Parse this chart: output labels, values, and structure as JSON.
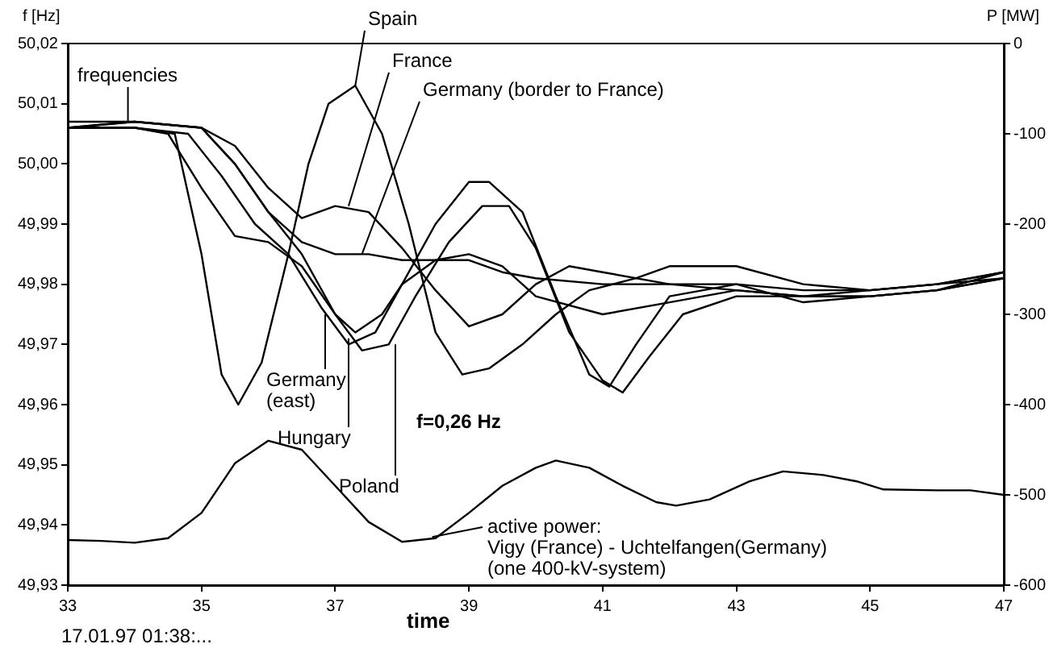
{
  "chart_data": {
    "type": "line",
    "xlabel": "time",
    "ylabel": "f [Hz]",
    "y2label": "P [MW]",
    "xlim": [
      33,
      47
    ],
    "xticks": [
      33,
      35,
      37,
      39,
      41,
      43,
      45,
      47
    ],
    "ylim": [
      49.93,
      50.02
    ],
    "yticks": [
      {
        "value": 49.93,
        "label": "49,93"
      },
      {
        "value": 49.94,
        "label": "49,94"
      },
      {
        "value": 49.95,
        "label": "49,95"
      },
      {
        "value": 49.96,
        "label": "49,96"
      },
      {
        "value": 49.97,
        "label": "49,97"
      },
      {
        "value": 49.98,
        "label": "49,98"
      },
      {
        "value": 49.99,
        "label": "49,99"
      },
      {
        "value": 50.0,
        "label": "50,00"
      },
      {
        "value": 50.01,
        "label": "50,01"
      },
      {
        "value": 50.02,
        "label": "50,02"
      }
    ],
    "y2lim": [
      -600,
      0
    ],
    "y2ticks": [
      -600,
      -500,
      -400,
      -300,
      -200,
      -100,
      0
    ],
    "grid": false,
    "legend": false,
    "series": [
      {
        "color": "#000000",
        "x": [
          33,
          34,
          34.6,
          35,
          35.3,
          35.55,
          35.9,
          36.3,
          36.6,
          36.9,
          37.3,
          37.7,
          38.1,
          38.5,
          38.9,
          39.3,
          39.8,
          40.3,
          40.8,
          41.5,
          42,
          43,
          44,
          45,
          46,
          47
        ],
        "values": [
          50.006,
          50.006,
          50.005,
          49.985,
          49.965,
          49.96,
          49.967,
          49.985,
          50.0,
          50.01,
          50.013,
          50.005,
          49.99,
          49.972,
          49.965,
          49.966,
          49.97,
          49.975,
          49.979,
          49.981,
          49.983,
          49.983,
          49.98,
          49.979,
          49.98,
          49.982
        ]
      },
      {
        "color": "#000000",
        "x": [
          33,
          34,
          35,
          35.5,
          36,
          36.5,
          37,
          37.5,
          38,
          38.5,
          39,
          39.5,
          40,
          40.5,
          41,
          42,
          43,
          44,
          45,
          46,
          47
        ],
        "values": [
          50.007,
          50.007,
          50.006,
          50.003,
          49.996,
          49.991,
          49.993,
          49.992,
          49.986,
          49.979,
          49.973,
          49.975,
          49.98,
          49.983,
          49.982,
          49.98,
          49.979,
          49.978,
          49.978,
          49.979,
          49.982
        ]
      },
      {
        "color": "#000000",
        "x": [
          33,
          34,
          35,
          35.5,
          36,
          36.5,
          37,
          37.5,
          38,
          38.5,
          39,
          39.5,
          40,
          41,
          42,
          43,
          44,
          45,
          46,
          47
        ],
        "values": [
          50.006,
          50.007,
          50.006,
          50.0,
          49.992,
          49.987,
          49.985,
          49.985,
          49.984,
          49.984,
          49.984,
          49.982,
          49.981,
          49.98,
          49.98,
          49.98,
          49.979,
          49.979,
          49.98,
          49.981
        ]
      },
      {
        "color": "#000000",
        "x": [
          33,
          34,
          34.5,
          35,
          35.5,
          36,
          36.5,
          37,
          37.3,
          37.7,
          38,
          38.5,
          39,
          39.5,
          40,
          41,
          42,
          43,
          44,
          45,
          46,
          47
        ],
        "values": [
          50.006,
          50.006,
          50.005,
          49.996,
          49.988,
          49.987,
          49.983,
          49.975,
          49.972,
          49.975,
          49.98,
          49.984,
          49.985,
          49.983,
          49.978,
          49.975,
          49.977,
          49.979,
          49.978,
          49.978,
          49.979,
          49.981
        ]
      },
      {
        "color": "#000000",
        "x": [
          33,
          34,
          34.8,
          35.3,
          35.8,
          36.3,
          36.8,
          37.2,
          37.6,
          38,
          38.5,
          39,
          39.3,
          39.8,
          40.3,
          40.8,
          41.1,
          41.5,
          42,
          43,
          44,
          45,
          46,
          47
        ],
        "values": [
          50.006,
          50.006,
          50.005,
          49.998,
          49.99,
          49.985,
          49.976,
          49.97,
          49.972,
          49.98,
          49.99,
          49.997,
          49.997,
          49.992,
          49.978,
          49.965,
          49.963,
          49.97,
          49.978,
          49.98,
          49.977,
          49.978,
          49.979,
          49.981
        ]
      },
      {
        "color": "#000000",
        "x": [
          33,
          34,
          35,
          35.5,
          36,
          36.5,
          37,
          37.4,
          37.8,
          38.2,
          38.7,
          39.2,
          39.6,
          40,
          40.5,
          41,
          41.3,
          41.7,
          42.2,
          43,
          44,
          45,
          46,
          47
        ],
        "values": [
          50.006,
          50.007,
          50.006,
          50.0,
          49.992,
          49.985,
          49.975,
          49.969,
          49.97,
          49.978,
          49.987,
          49.993,
          49.993,
          49.986,
          49.972,
          49.964,
          49.962,
          49.968,
          49.975,
          49.978,
          49.978,
          49.979,
          49.98,
          49.982
        ]
      },
      {
        "color": "#000000",
        "axis": "y2",
        "x": [
          33,
          33.5,
          34,
          34.5,
          35,
          35.5,
          36,
          36.5,
          37,
          37.5,
          38,
          38.5,
          39,
          39.5,
          40,
          40.3,
          40.8,
          41.3,
          41.8,
          42.1,
          42.6,
          43.2,
          43.7,
          44.3,
          44.8,
          45.2,
          46,
          46.5,
          47
        ],
        "values": [
          -550,
          -551,
          -553,
          -548,
          -520,
          -465,
          -440,
          -450,
          -490,
          -530,
          -552,
          -548,
          -520,
          -490,
          -470,
          -462,
          -470,
          -490,
          -508,
          -512,
          -505,
          -485,
          -474,
          -478,
          -485,
          -494,
          -495,
          -495,
          -500
        ]
      }
    ],
    "annotations": [
      {
        "text": "frequencies",
        "x": 33.9,
        "y": 50.007
      },
      {
        "text": "Spain",
        "x": 37.3,
        "y": 50.013
      },
      {
        "text": "France",
        "x": 37.2,
        "y": 49.993
      },
      {
        "text": "Germany (border to France)",
        "x": 37.4,
        "y": 49.985
      },
      {
        "text": "Germany\n(east)",
        "x": 36.85,
        "y": 49.975
      },
      {
        "text": "Hungary",
        "x": 37.2,
        "y": 49.971
      },
      {
        "text": "Poland",
        "x": 37.9,
        "y": 49.97
      },
      "f=0,26 Hz",
      {
        "text": "active power:\nVigy (France) - Uchtelfangen(Germany)\n(one 400-kV-system)",
        "x": 38.45,
        "y": 49.938
      },
      "17.01.97 01:38:..."
    ]
  }
}
